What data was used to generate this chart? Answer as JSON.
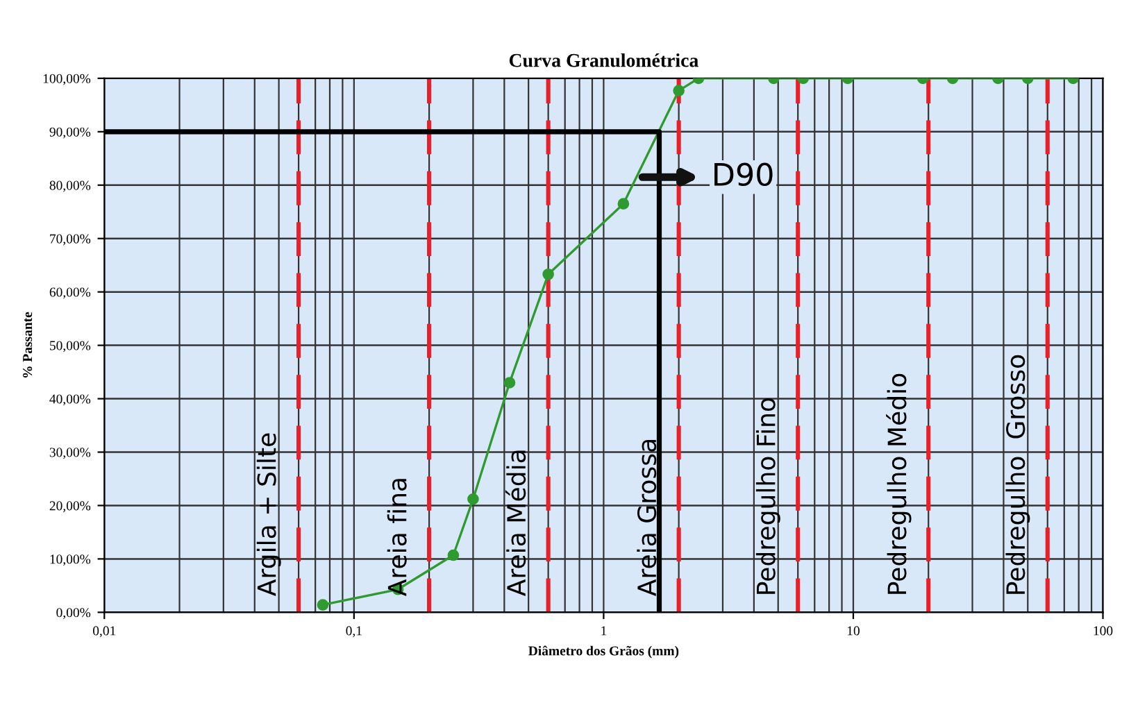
{
  "chart_data": {
    "type": "line",
    "title": "Curva Granulométrica",
    "xlabel": "Diâmetro dos Grãos (mm)",
    "ylabel": "% Passante",
    "log": "x",
    "xlim": [
      0.01,
      100
    ],
    "xticks": [
      {
        "value": 0.01,
        "label": "0,01"
      },
      {
        "value": 0.1,
        "label": "0,1"
      },
      1,
      10,
      100
    ],
    "ylim": [
      0,
      100
    ],
    "yticks": [
      {
        "value": 0,
        "label": "0,00%"
      },
      {
        "value": 10,
        "label": "10,00%"
      },
      {
        "value": 20,
        "label": "20,00%"
      },
      {
        "value": 30,
        "label": "30,00%"
      },
      {
        "value": 40,
        "label": "40,00%"
      },
      {
        "value": 50,
        "label": "50,00%"
      },
      {
        "value": 60,
        "label": "60,00%"
      },
      {
        "value": 70,
        "label": "70,00%"
      },
      {
        "value": 80,
        "label": "80,00%"
      },
      {
        "value": 90,
        "label": "90,00%"
      },
      {
        "value": 100,
        "label": "100,00%"
      }
    ],
    "grid": true,
    "marker": "circle",
    "line_style": "solid",
    "series": [
      {
        "color": "#2f9a2f",
        "x": [
          0.075,
          0.15,
          0.25,
          0.3,
          0.42,
          0.6,
          1.2,
          2.0,
          2.4,
          4.8,
          6.3,
          9.5,
          19,
          25,
          38,
          50,
          76
        ],
        "values": [
          1.4,
          4.3,
          10.7,
          21.2,
          43,
          63.3,
          76.5,
          97.7,
          100,
          100,
          100,
          100,
          100,
          100,
          100,
          100,
          100
        ]
      },
      {
        "color": "#000000",
        "marker": "none",
        "x": [
          0.01,
          1.67,
          1.67
        ],
        "values": [
          90,
          90,
          0
        ]
      }
    ],
    "ref_lines": [
      {
        "axis": "x",
        "value": 0.06,
        "color": "#e8202a",
        "line_style": "dashed"
      },
      {
        "axis": "x",
        "value": 0.2,
        "color": "#e8202a",
        "line_style": "dashed"
      },
      {
        "axis": "x",
        "value": 0.6,
        "color": "#e8202a",
        "line_style": "dashed"
      },
      {
        "axis": "x",
        "value": 2,
        "color": "#e8202a",
        "line_style": "dashed"
      },
      {
        "axis": "x",
        "value": 6,
        "color": "#e8202a",
        "line_style": "dashed"
      },
      {
        "axis": "x",
        "value": 20,
        "color": "#e8202a",
        "line_style": "dashed"
      },
      {
        "axis": "x",
        "value": 60,
        "color": "#e8202a",
        "line_style": "dashed"
      }
    ],
    "annotations": [
      "D90",
      "Argila + Silte",
      "Areia fina",
      "Areia Média",
      "Areia Grossa",
      "Pedregulho Fino",
      "Pedregulho Médio",
      "Pedregulho  Grosso"
    ]
  }
}
